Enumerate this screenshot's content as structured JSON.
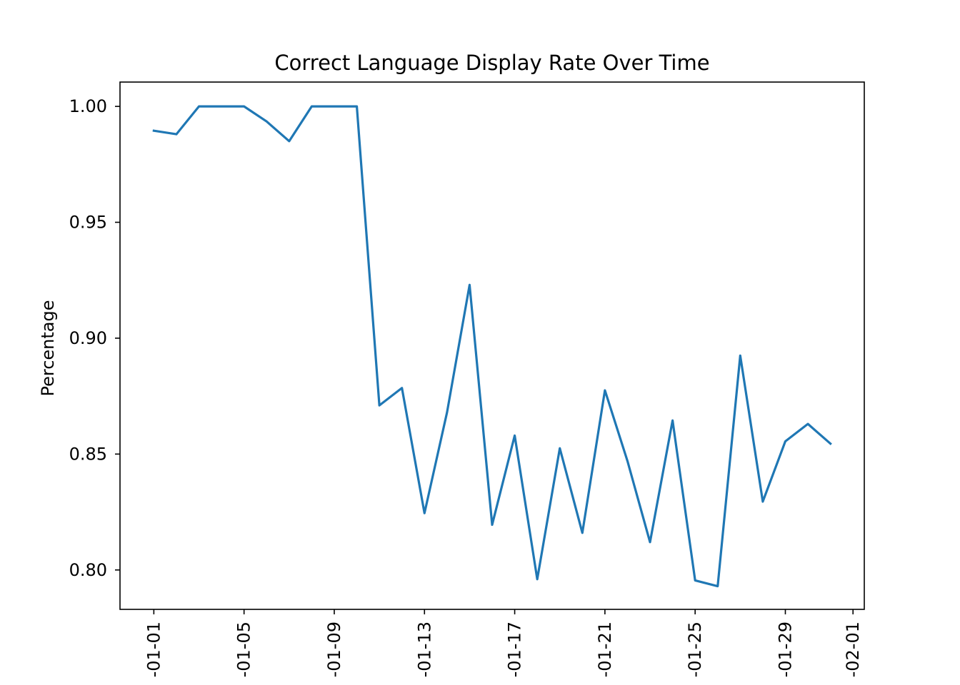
{
  "chart_data": {
    "type": "line",
    "title": "Correct Language Display Rate Over Time",
    "xlabel": "",
    "ylabel": "Percentage",
    "grid": false,
    "legend": "none",
    "line_color": "#1f77b4",
    "x_tick_labels": [
      "-01-01",
      "-01-05",
      "-01-09",
      "-01-13",
      "-01-17",
      "-01-21",
      "-01-25",
      "-01-29",
      "-02-01"
    ],
    "x_tick_days": [
      1,
      5,
      9,
      13,
      17,
      21,
      25,
      29,
      32
    ],
    "y_ticks": [
      0.8,
      0.85,
      0.9,
      0.95,
      1.0
    ],
    "y_tick_labels": [
      "0.80",
      "0.85",
      "0.90",
      "0.95",
      "1.00"
    ],
    "xlim": [
      -0.5,
      32.5
    ],
    "ylim": [
      0.783,
      1.0105
    ],
    "series": [
      {
        "x": [
          1,
          2,
          3,
          4,
          5,
          6,
          7,
          8,
          9,
          10,
          11,
          12,
          13,
          14,
          15,
          16,
          17,
          18,
          19,
          20,
          21,
          22,
          23,
          24,
          25,
          26,
          27,
          28,
          29,
          30,
          31
        ],
        "y": [
          0.9895,
          0.988,
          1.0,
          1.0,
          1.0,
          0.9935,
          0.985,
          1.0,
          1.0,
          1.0,
          0.871,
          0.8785,
          0.8245,
          0.868,
          0.923,
          0.8195,
          0.858,
          0.796,
          0.8525,
          0.816,
          0.8775,
          0.847,
          0.812,
          0.8645,
          0.7955,
          0.793,
          0.8925,
          0.8295,
          0.8555,
          0.863,
          0.8545
        ]
      }
    ]
  }
}
